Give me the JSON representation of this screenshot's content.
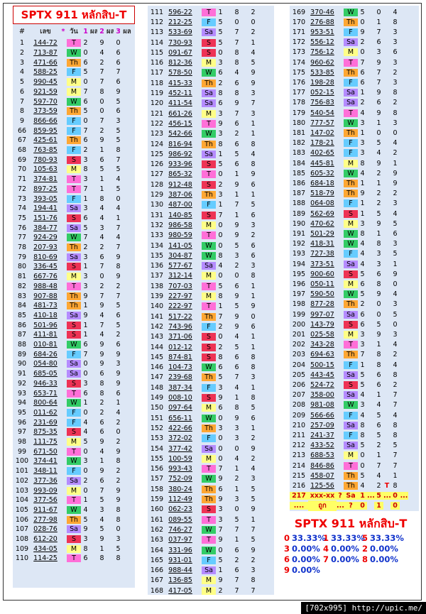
{
  "header": {
    "title": "SPTX 911 หลักสิบ-T",
    "columns": [
      "#",
      "เลข",
      "*",
      "วัน",
      "1",
      "ผล",
      "2",
      "ผล",
      "3",
      "ผล"
    ]
  },
  "tables": [
    {
      "rows": [
        [
          1,
          "144-72",
          "T",
          2,
          9,
          0
        ],
        [
          2,
          "713-87",
          "W",
          0,
          4,
          6
        ],
        [
          3,
          "471-66",
          "Th",
          6,
          2,
          6
        ],
        [
          4,
          "588-25",
          "F",
          5,
          7,
          7
        ],
        [
          5,
          "990-45",
          "M",
          0,
          7,
          6
        ],
        [
          6,
          "921-59",
          "M",
          7,
          8,
          9
        ],
        [
          7,
          "597-70",
          "W",
          6,
          0,
          5
        ],
        [
          8,
          "373-59",
          "Th",
          5,
          0,
          6
        ],
        [
          9,
          "866-66",
          "F",
          0,
          7,
          3
        ],
        [
          66,
          "859-95",
          "F",
          7,
          2,
          5
        ],
        [
          67,
          "425-61",
          "Th",
          6,
          9,
          5
        ],
        [
          68,
          "763-85",
          "F",
          2,
          1,
          8
        ],
        [
          69,
          "780-93",
          "S",
          3,
          6,
          7
        ],
        [
          70,
          "105-63",
          "M",
          8,
          5,
          5
        ],
        [
          71,
          "374-81",
          "T",
          3,
          1,
          4
        ],
        [
          72,
          "897-25",
          "T",
          7,
          1,
          5
        ],
        [
          73,
          "393-05",
          "F",
          1,
          8,
          0
        ],
        [
          74,
          "194-41",
          "Sa",
          3,
          4,
          4
        ],
        [
          75,
          "151-76",
          "S",
          6,
          4,
          1
        ],
        [
          76,
          "384-77",
          "Sa",
          5,
          3,
          7
        ],
        [
          77,
          "924-29",
          "W",
          7,
          4,
          4
        ],
        [
          78,
          "207-93",
          "Th",
          2,
          2,
          7
        ],
        [
          79,
          "810-69",
          "Sa",
          3,
          6,
          9
        ],
        [
          80,
          "336-45",
          "S",
          1,
          7,
          8
        ],
        [
          81,
          "667-76",
          "M",
          3,
          0,
          9
        ],
        [
          82,
          "988-48",
          "T",
          3,
          2,
          2
        ],
        [
          83,
          "907-88",
          "Th",
          9,
          7,
          7
        ],
        [
          84,
          "481-73",
          "Th",
          1,
          9,
          5
        ],
        [
          85,
          "410-18",
          "Sa",
          9,
          4,
          6
        ],
        [
          86,
          "501-96",
          "S",
          1,
          7,
          5
        ],
        [
          87,
          "411-81",
          "S",
          1,
          4,
          2
        ],
        [
          88,
          "010-81",
          "W",
          6,
          9,
          6
        ],
        [
          89,
          "684-26",
          "F",
          7,
          9,
          9
        ],
        [
          90,
          "054-80",
          "Sa",
          0,
          9,
          3
        ],
        [
          91,
          "685-05",
          "Sa",
          0,
          6,
          9
        ],
        [
          92,
          "946-33",
          "S",
          3,
          8,
          9
        ],
        [
          93,
          "653-71",
          "T",
          6,
          8,
          6
        ],
        [
          94,
          "800-64",
          "W",
          1,
          2,
          1
        ],
        [
          95,
          "011-62",
          "F",
          0,
          2,
          4
        ],
        [
          96,
          "231-69",
          "F",
          4,
          6,
          2
        ],
        [
          97,
          "875-35",
          "S",
          4,
          6,
          0
        ],
        [
          98,
          "111-75",
          "M",
          5,
          9,
          2
        ],
        [
          99,
          "671-50",
          "T",
          0,
          4,
          9
        ],
        [
          100,
          "374-41",
          "W",
          3,
          1,
          8
        ],
        [
          101,
          "348-11",
          "F",
          0,
          9,
          2
        ],
        [
          102,
          "377-36",
          "Sa",
          2,
          6,
          2
        ],
        [
          103,
          "993-09",
          "M",
          0,
          7,
          9
        ],
        [
          104,
          "377-56",
          "T",
          1,
          5,
          9
        ],
        [
          105,
          "911-67",
          "W",
          4,
          3,
          8
        ],
        [
          106,
          "277-98",
          "Th",
          5,
          4,
          8
        ],
        [
          107,
          "028-76",
          "Sa",
          9,
          5,
          0
        ],
        [
          108,
          "612-20",
          "S",
          3,
          9,
          3
        ],
        [
          109,
          "434-05",
          "M",
          8,
          1,
          5
        ],
        [
          110,
          "114-25",
          "T",
          6,
          8,
          8
        ]
      ]
    },
    {
      "rows": [
        [
          111,
          "596-22",
          "T",
          1,
          8,
          2
        ],
        [
          112,
          "212-25",
          "F",
          5,
          0,
          0
        ],
        [
          113,
          "533-69",
          "Sa",
          5,
          7,
          2
        ],
        [
          114,
          "730-93",
          "S",
          5,
          7,
          1
        ],
        [
          115,
          "091-67",
          "S",
          0,
          8,
          4
        ],
        [
          116,
          "812-36",
          "M",
          3,
          8,
          5
        ],
        [
          117,
          "578-50",
          "W",
          6,
          4,
          9
        ],
        [
          118,
          "415-33",
          "Th",
          2,
          6,
          9
        ],
        [
          119,
          "452-11",
          "Sa",
          8,
          8,
          3
        ],
        [
          120,
          "411-54",
          "Sa",
          6,
          9,
          7
        ],
        [
          121,
          "661-26",
          "M",
          3,
          7,
          3
        ],
        [
          122,
          "456-15",
          "T",
          9,
          6,
          1
        ],
        [
          123,
          "542-66",
          "W",
          3,
          2,
          1
        ],
        [
          124,
          "816-94",
          "Th",
          8,
          6,
          8
        ],
        [
          125,
          "986-92",
          "Sa",
          1,
          5,
          4
        ],
        [
          126,
          "933-96",
          "S",
          5,
          6,
          8
        ],
        [
          127,
          "865-32",
          "T",
          0,
          1,
          9
        ],
        [
          128,
          "912-48",
          "S",
          2,
          9,
          6
        ],
        [
          129,
          "387-06",
          "Th",
          3,
          1,
          1
        ],
        [
          130,
          "487-00",
          "F",
          1,
          7,
          5
        ],
        [
          131,
          "140-85",
          "S",
          7,
          1,
          6
        ],
        [
          132,
          "986-58",
          "M",
          0,
          9,
          3
        ],
        [
          133,
          "980-59",
          "T",
          0,
          9,
          2
        ],
        [
          134,
          "141-05",
          "W",
          0,
          5,
          6
        ],
        [
          135,
          "304-87",
          "W",
          8,
          3,
          6
        ],
        [
          136,
          "577-67",
          "Sa",
          4,
          2,
          3
        ],
        [
          137,
          "312-14",
          "M",
          0,
          0,
          8
        ],
        [
          138,
          "707-03",
          "T",
          5,
          6,
          1
        ],
        [
          139,
          "227-97",
          "M",
          8,
          9,
          1
        ],
        [
          140,
          "222-97",
          "T",
          1,
          5,
          9
        ],
        [
          141,
          "517-22",
          "Th",
          7,
          9,
          0
        ],
        [
          142,
          "743-96",
          "F",
          2,
          9,
          6
        ],
        [
          143,
          "371-06",
          "S",
          0,
          4,
          1
        ],
        [
          144,
          "012-12",
          "S",
          2,
          5,
          1
        ],
        [
          145,
          "874-81",
          "S",
          8,
          6,
          8
        ],
        [
          146,
          "104-73",
          "W",
          6,
          6,
          8
        ],
        [
          147,
          "239-68",
          "Th",
          5,
          7,
          3
        ],
        [
          148,
          "387-34",
          "F",
          3,
          4,
          1
        ],
        [
          149,
          "008-10",
          "S",
          9,
          1,
          8
        ],
        [
          150,
          "097-64",
          "M",
          6,
          8,
          5
        ],
        [
          151,
          "656-11",
          "W",
          0,
          9,
          6
        ],
        [
          152,
          "422-66",
          "Th",
          3,
          3,
          1
        ],
        [
          153,
          "372-02",
          "F",
          0,
          3,
          2
        ],
        [
          154,
          "377-42",
          "Sa",
          0,
          0,
          9
        ],
        [
          155,
          "100-59",
          "M",
          0,
          4,
          2
        ],
        [
          156,
          "993-43",
          "T",
          7,
          1,
          4
        ],
        [
          157,
          "752-09",
          "W",
          9,
          2,
          3
        ],
        [
          158,
          "380-24",
          "Th",
          6,
          1,
          5
        ],
        [
          159,
          "112-49",
          "Th",
          9,
          3,
          5
        ],
        [
          160,
          "062-23",
          "S",
          3,
          0,
          9
        ],
        [
          161,
          "089-55",
          "T",
          3,
          5,
          1
        ],
        [
          162,
          "746-27",
          "W",
          7,
          7,
          7
        ],
        [
          163,
          "037-97",
          "T",
          9,
          1,
          5
        ],
        [
          164,
          "331-96",
          "W",
          0,
          6,
          9
        ],
        [
          165,
          "931-01",
          "F",
          5,
          2,
          2
        ],
        [
          166,
          "988-44",
          "Sa",
          1,
          6,
          3
        ],
        [
          167,
          "136-85",
          "M",
          9,
          7,
          8
        ],
        [
          168,
          "417-05",
          "M",
          2,
          7,
          7
        ]
      ]
    },
    {
      "rows": [
        [
          169,
          "370-46",
          "W",
          5,
          0,
          4
        ],
        [
          170,
          "276-88",
          "Th",
          0,
          1,
          8
        ],
        [
          171,
          "953-51",
          "F",
          9,
          7,
          3
        ],
        [
          172,
          "556-12",
          "Sa",
          2,
          6,
          3
        ],
        [
          173,
          "756-12",
          "M",
          0,
          3,
          6
        ],
        [
          174,
          "960-62",
          "T",
          7,
          9,
          3
        ],
        [
          175,
          "533-85",
          "Th",
          6,
          7,
          2
        ],
        [
          176,
          "198-28",
          "F",
          6,
          7,
          3
        ],
        [
          177,
          "052-15",
          "Sa",
          1,
          9,
          8
        ],
        [
          178,
          "756-83",
          "Sa",
          2,
          6,
          2
        ],
        [
          179,
          "540-54",
          "T",
          4,
          9,
          8
        ],
        [
          180,
          "777-57",
          "W",
          3,
          1,
          3
        ],
        [
          181,
          "147-02",
          "Th",
          1,
          0,
          0
        ],
        [
          182,
          "178-21",
          "F",
          3,
          5,
          4
        ],
        [
          183,
          "402-65",
          "F",
          3,
          4,
          2
        ],
        [
          184,
          "445-81",
          "M",
          8,
          9,
          1
        ],
        [
          185,
          "605-32",
          "W",
          4,
          2,
          9
        ],
        [
          186,
          "684-18",
          "Th",
          1,
          1,
          9
        ],
        [
          187,
          "518-79",
          "Th",
          9,
          2,
          2
        ],
        [
          188,
          "064-08",
          "F",
          1,
          2,
          3
        ],
        [
          189,
          "562-69",
          "S",
          1,
          5,
          4
        ],
        [
          190,
          "470-62",
          "M",
          3,
          9,
          5
        ],
        [
          191,
          "501-29",
          "W",
          8,
          1,
          6
        ],
        [
          192,
          "418-31",
          "W",
          4,
          8,
          3
        ],
        [
          193,
          "727-38",
          "F",
          4,
          3,
          5
        ],
        [
          194,
          "373-51",
          "Sa",
          4,
          3,
          1
        ],
        [
          195,
          "900-60",
          "S",
          5,
          6,
          9
        ],
        [
          196,
          "050-11",
          "M",
          6,
          8,
          0
        ],
        [
          197,
          "590-50",
          "W",
          5,
          9,
          4
        ],
        [
          198,
          "877-28",
          "Th",
          2,
          0,
          3
        ],
        [
          199,
          "997-07",
          "Sa",
          6,
          0,
          5
        ],
        [
          200,
          "143-79",
          "S",
          6,
          5,
          0
        ],
        [
          201,
          "025-58",
          "M",
          3,
          9,
          3
        ],
        [
          202,
          "343-28",
          "T",
          3,
          1,
          4
        ],
        [
          203,
          "694-63",
          "Th",
          7,
          8,
          2
        ],
        [
          204,
          "500-15",
          "F",
          1,
          8,
          4
        ],
        [
          205,
          "443-45",
          "Sa",
          5,
          6,
          8
        ],
        [
          206,
          "524-72",
          "S",
          5,
          6,
          2
        ],
        [
          207,
          "358-00",
          "Sa",
          4,
          1,
          7
        ],
        [
          208,
          "981-08",
          "W",
          3,
          4,
          7
        ],
        [
          209,
          "566-66",
          "F",
          4,
          5,
          4
        ],
        [
          210,
          "257-09",
          "Sa",
          8,
          6,
          8
        ],
        [
          211,
          "241-37",
          "F",
          8,
          5,
          8
        ],
        [
          212,
          "433-52",
          "Sa",
          5,
          2,
          5
        ],
        [
          213,
          "688-53",
          "M",
          0,
          1,
          7
        ],
        [
          214,
          "846-86",
          "T",
          0,
          7,
          7
        ],
        [
          215,
          "458-07",
          "Th",
          5,
          4,
          1
        ],
        [
          216,
          "125-56",
          "Th",
          4,
          2,
          8,
          "T"
        ]
      ],
      "pending": [
        [
          217,
          "xxx-xx",
          "?",
          "Sa",
          "1",
          "...",
          "5",
          "...",
          "0",
          "..."
        ],
        [
          "....",
          "ถูก",
          "....",
          "?",
          "0",
          null,
          "1",
          null,
          "0",
          null
        ]
      ]
    }
  ],
  "summary": {
    "title": "SPTX 911 หลักสิบ-T",
    "items": [
      [
        0,
        "33.33%"
      ],
      [
        1,
        "33.33%"
      ],
      [
        5,
        "33.33%"
      ],
      [
        3,
        "0.00%"
      ],
      [
        4,
        "0.00%"
      ],
      [
        2,
        "0.00%"
      ],
      [
        6,
        "0.00%"
      ],
      [
        7,
        "0.00%"
      ],
      [
        8,
        "0.00%"
      ],
      [
        9,
        "0.00%"
      ]
    ]
  },
  "watermark": "[702x995] http://upic.me/"
}
